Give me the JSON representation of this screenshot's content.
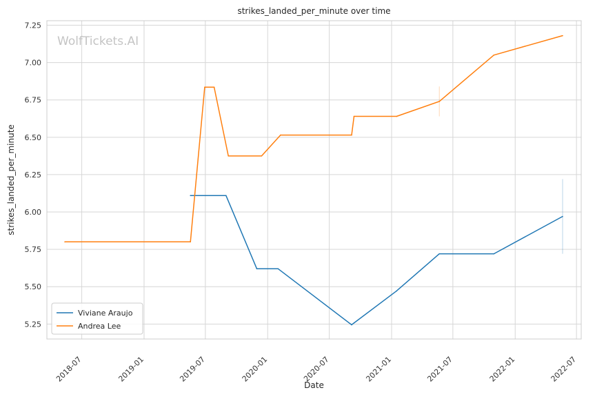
{
  "chart_data": {
    "type": "line",
    "title": "strikes_landed_per_minute over time",
    "xlabel": "Date",
    "ylabel": "strikes_landed_per_minute",
    "watermark": "WolfTickets.AI",
    "xlim": [
      "2018-03-20",
      "2022-07-15"
    ],
    "ylim": [
      5.15,
      7.28
    ],
    "x_ticks": [
      "2018-07",
      "2019-01",
      "2019-07",
      "2020-01",
      "2020-07",
      "2021-01",
      "2021-07",
      "2022-01",
      "2022-07"
    ],
    "y_ticks": [
      "5.25",
      "5.50",
      "5.75",
      "6.00",
      "6.25",
      "6.50",
      "6.75",
      "7.00",
      "7.25"
    ],
    "grid": true,
    "legend_position": "lower-left",
    "series": [
      {
        "name": "Viviane Araujo",
        "color": "#1f77b4",
        "x": [
          "2019-05-18",
          "2019-08-31",
          "2019-11-30",
          "2020-02-01",
          "2020-09-05",
          "2021-01-15",
          "2021-05-22",
          "2021-10-30",
          "2022-05-21"
        ],
        "y": [
          6.11,
          6.11,
          5.62,
          5.62,
          5.245,
          5.47,
          5.72,
          5.72,
          5.97
        ],
        "error_bar": {
          "x": "2022-05-21",
          "low": 5.72,
          "high": 6.22
        }
      },
      {
        "name": "Andrea Lee",
        "color": "#ff7f0e",
        "x": [
          "2018-05-12",
          "2019-05-18",
          "2019-06-29",
          "2019-07-27",
          "2019-09-07",
          "2019-12-14",
          "2020-02-08",
          "2020-09-05",
          "2020-09-12",
          "2021-01-16",
          "2021-05-22",
          "2021-10-30",
          "2022-05-21"
        ],
        "y": [
          5.8,
          5.8,
          6.835,
          6.835,
          6.375,
          6.375,
          6.515,
          6.515,
          6.64,
          6.64,
          6.74,
          7.05,
          7.18
        ],
        "error_bar": {
          "x": "2021-05-22",
          "low": 6.64,
          "high": 6.84
        }
      }
    ]
  }
}
